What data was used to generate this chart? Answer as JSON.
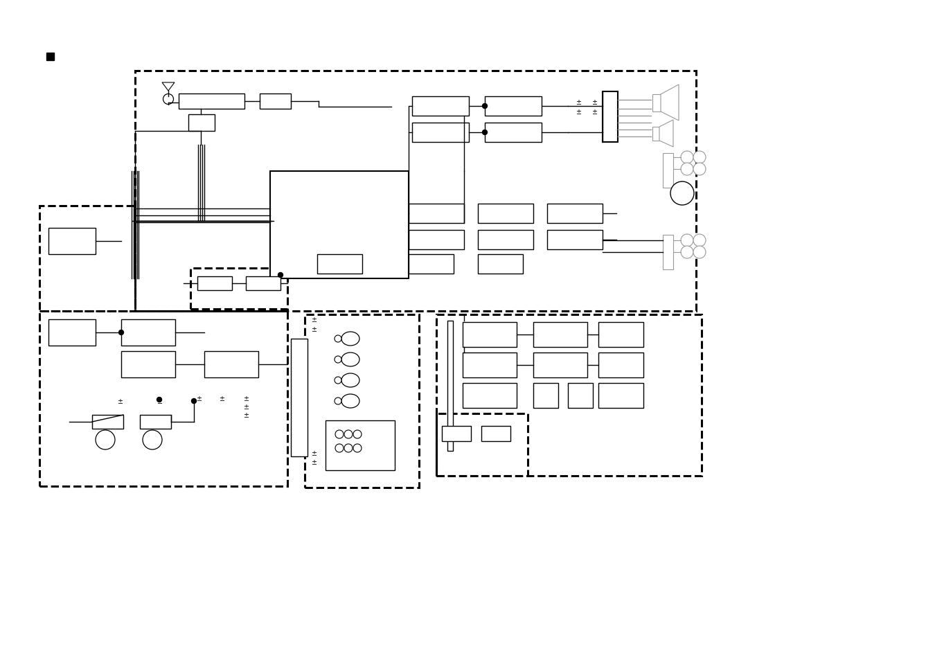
{
  "bg_color": "#ffffff",
  "lc": "#000000",
  "gc": "#999999",
  "fig_width": 13.5,
  "fig_height": 9.54,
  "dpi": 100
}
